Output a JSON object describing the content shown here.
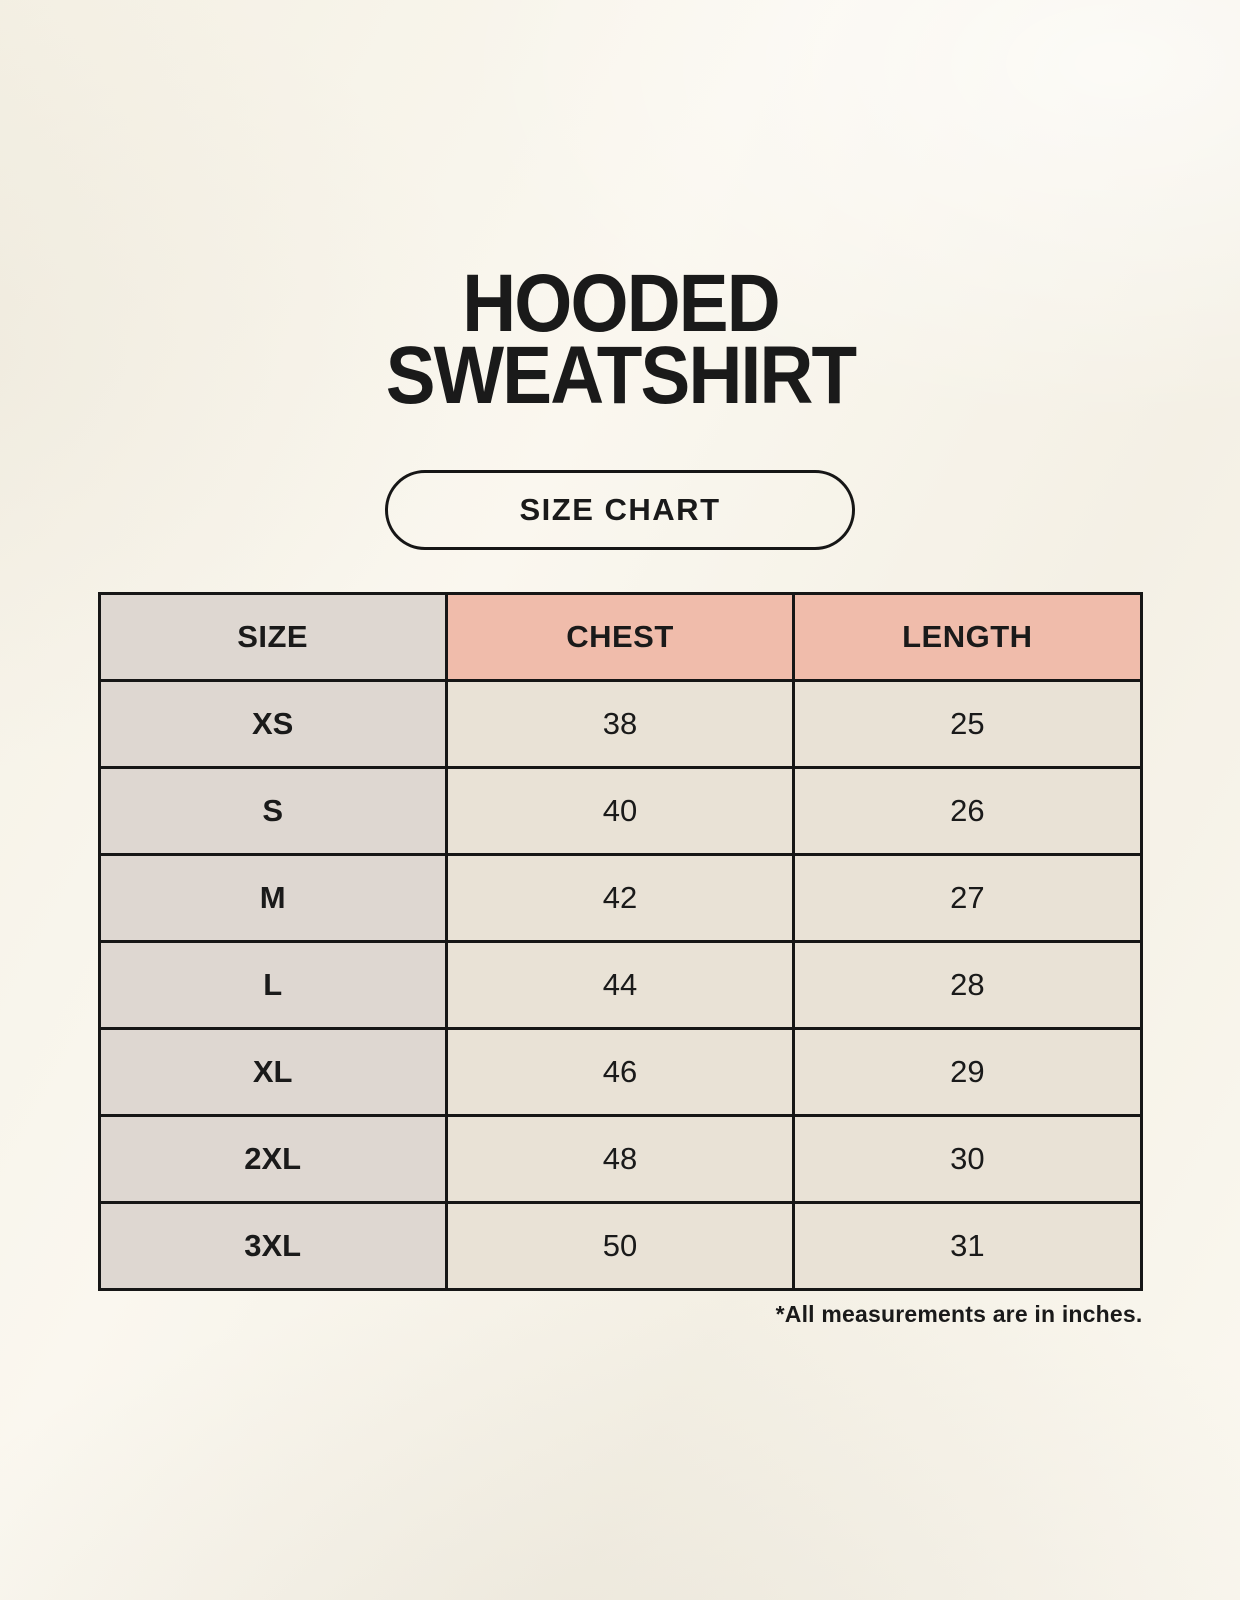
{
  "page": {
    "title_line1": "HOODED",
    "title_line2": "SWEATSHIRT",
    "button_label": "SIZE CHART",
    "footnote": "*All measurements are in inches."
  },
  "table": {
    "headers": [
      "SIZE",
      "CHEST",
      "LENGTH"
    ],
    "rows": [
      {
        "size": "XS",
        "chest": "38",
        "length": "25"
      },
      {
        "size": "S",
        "chest": "40",
        "length": "26"
      },
      {
        "size": "M",
        "chest": "42",
        "length": "27"
      },
      {
        "size": "L",
        "chest": "44",
        "length": "28"
      },
      {
        "size": "XL",
        "chest": "46",
        "length": "29"
      },
      {
        "size": "2XL",
        "chest": "48",
        "length": "30"
      },
      {
        "size": "3XL",
        "chest": "50",
        "length": "31"
      }
    ]
  },
  "chart_data": {
    "type": "table",
    "title": "HOODED SWEATSHIRT SIZE CHART",
    "columns": [
      "SIZE",
      "CHEST",
      "LENGTH"
    ],
    "rows": [
      [
        "XS",
        38,
        25
      ],
      [
        "S",
        40,
        26
      ],
      [
        "M",
        42,
        27
      ],
      [
        "L",
        44,
        28
      ],
      [
        "XL",
        46,
        29
      ],
      [
        "2XL",
        48,
        30
      ],
      [
        "3XL",
        50,
        31
      ]
    ],
    "units": "inches"
  },
  "colors": {
    "page_background": "#f9f6ee",
    "header_accent": "#f0bcab",
    "size_column": "#ded7d1",
    "data_cell": "#e9e2d6",
    "border": "#161616",
    "text": "#1a1a1a"
  }
}
